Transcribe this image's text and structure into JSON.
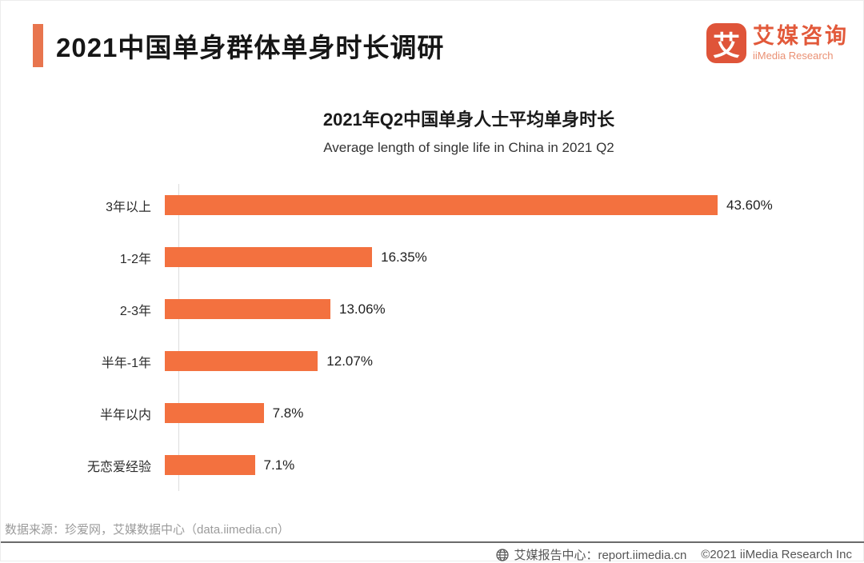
{
  "header": {
    "title": "2021中国单身群体单身时长调研"
  },
  "logo": {
    "mark": "艾",
    "name_cn": "艾媒咨询",
    "name_en": "iiMedia Research"
  },
  "chart_data": {
    "type": "bar",
    "orientation": "horizontal",
    "title": "2021年Q2中国单身人士平均单身时长",
    "subtitle": "Average length of single life in China in 2021 Q2",
    "categories": [
      "3年以上",
      "1-2年",
      "2-3年",
      "半年-1年",
      "半年以内",
      "无恋爱经验"
    ],
    "values": [
      43.6,
      16.35,
      13.06,
      12.07,
      7.8,
      7.1
    ],
    "value_labels": [
      "43.60%",
      "16.35%",
      "13.06%",
      "12.07%",
      "7.8%",
      "7.1%"
    ],
    "unit": "%",
    "xlim": [
      0,
      49
    ],
    "grid": false,
    "legend": false,
    "bar_color": "#F3713F"
  },
  "footer": {
    "source": "数据来源：珍爱网，艾媒数据中心（data.iimedia.cn）",
    "report_center": "艾媒报告中心：report.iimedia.cn",
    "copyright": "©2021  iiMedia Research  Inc"
  },
  "colors": {
    "bar": "#F3713F",
    "accent_bar": "#E8754E",
    "logo": "#DF5439",
    "divider": "#6B6B6B",
    "source_text": "#9B9B9B"
  }
}
